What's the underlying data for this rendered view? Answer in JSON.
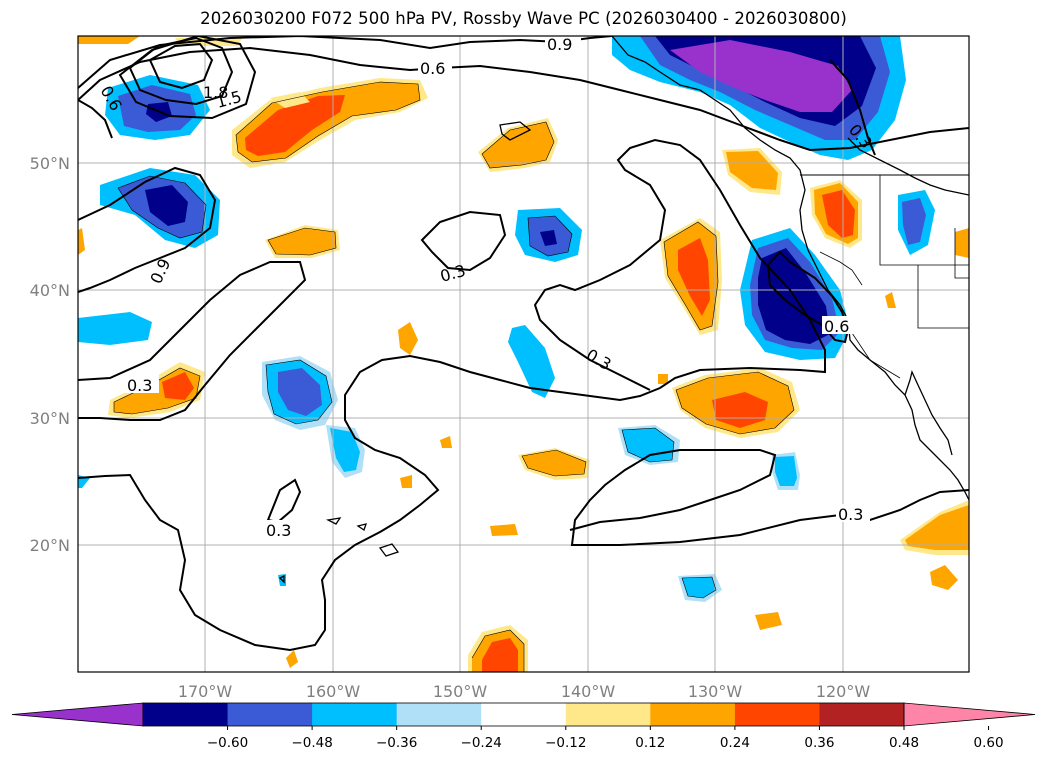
{
  "title": "2026030200 F072 500 hPa PV, Rossby Wave PC (2026030400 - 2026030800)",
  "map": {
    "lat_labels": [
      "50°N",
      "40°N",
      "30°N",
      "20°N"
    ],
    "lon_labels": [
      "170°W",
      "160°W",
      "150°W",
      "140°W",
      "130°W",
      "120°W"
    ],
    "contour_labels": [
      "0.9",
      "0.6",
      "1.8",
      "1.5",
      "0.6",
      "0.3",
      "0.9",
      "0.3",
      "0.3",
      "0.3",
      "0.6",
      "0.3",
      "0.3",
      "0.9"
    ],
    "anomaly_colors": {
      "strong_negative": "#00008b",
      "moderate_negative": "#3b5bd6",
      "weak_negative": "#00bfff",
      "faint_negative": "#b0e0f8",
      "faint_positive": "#ffe88a",
      "weak_positive": "#ffa500",
      "moderate_positive": "#ff4500",
      "extreme_negative": "#9932cc"
    }
  },
  "colorbar": {
    "colors": [
      "#9932cc",
      "#00008b",
      "#3b5bd6",
      "#00bfff",
      "#b0e0f8",
      "#ffffff",
      "#ffe88a",
      "#ffa500",
      "#ff4500",
      "#b22222",
      "#ff85a8"
    ],
    "tick_labels": [
      "−0.60",
      "−0.48",
      "−0.36",
      "−0.24",
      "−0.12",
      "0.12",
      "0.24",
      "0.36",
      "0.48",
      "0.60"
    ],
    "tick_values": [
      -0.6,
      -0.48,
      -0.36,
      -0.24,
      -0.12,
      0.12,
      0.24,
      0.36,
      0.48,
      0.6
    ]
  }
}
